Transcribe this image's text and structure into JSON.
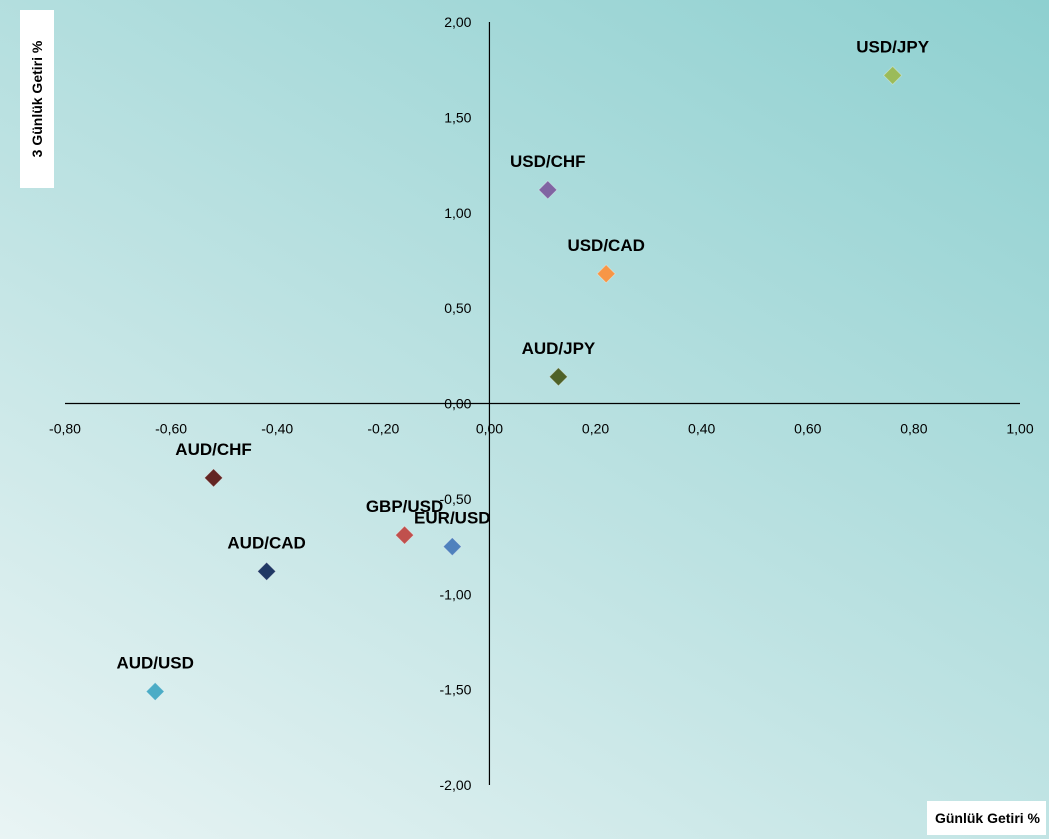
{
  "chart_data": {
    "type": "scatter",
    "xlabel": "Günlük  Getiri %",
    "ylabel": "3 Günlük Getiri %",
    "xlim": [
      -0.8,
      1.0
    ],
    "ylim": [
      -2.0,
      2.0
    ],
    "x_ticks": [
      "-0,80",
      "-0,60",
      "-0,40",
      "-0,20",
      "0,00",
      "0,20",
      "0,40",
      "0,60",
      "0,80",
      "1,00"
    ],
    "y_ticks": [
      "2,00",
      "1,50",
      "1,00",
      "0,50",
      "0,00",
      "-0,50",
      "-1,00",
      "-1,50",
      "-2,00"
    ],
    "grid": false,
    "marker": "diamond",
    "points": [
      {
        "label": "USD/JPY",
        "x": 0.76,
        "y": 1.72,
        "color": "#9bbb59"
      },
      {
        "label": "USD/CHF",
        "x": 0.11,
        "y": 1.12,
        "color": "#8064a2"
      },
      {
        "label": "USD/CAD",
        "x": 0.22,
        "y": 0.68,
        "color": "#f79646"
      },
      {
        "label": "AUD/JPY",
        "x": 0.13,
        "y": 0.14,
        "color": "#4f6228"
      },
      {
        "label": "AUD/CHF",
        "x": -0.52,
        "y": -0.39,
        "color": "#632523"
      },
      {
        "label": "GBP/USD",
        "x": -0.16,
        "y": -0.69,
        "color": "#c0504d"
      },
      {
        "label": "EUR/USD",
        "x": -0.07,
        "y": -0.75,
        "color": "#4f81bd"
      },
      {
        "label": "AUD/CAD",
        "x": -0.42,
        "y": -0.88,
        "color": "#1f3864"
      },
      {
        "label": "AUD/USD",
        "x": -0.63,
        "y": -1.51,
        "color": "#4bacc6"
      }
    ]
  }
}
